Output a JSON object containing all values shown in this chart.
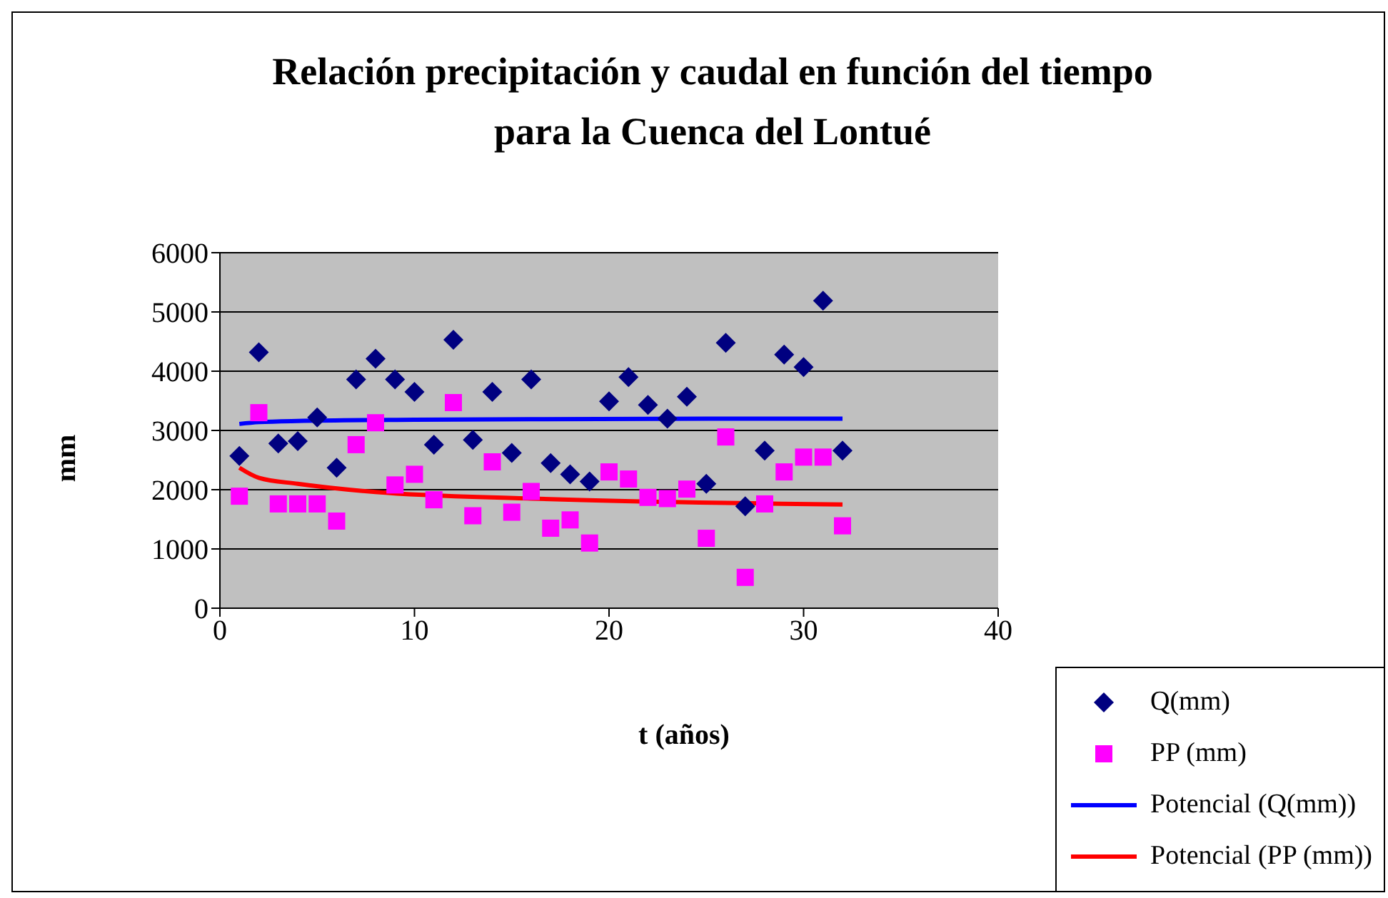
{
  "chart_data": {
    "type": "scatter",
    "title": "Relación precipitación y caudal en función del tiempo\npara la Cuenca del Lontué",
    "xlabel": "t (años)",
    "ylabel": "mm",
    "xlim": [
      0,
      40
    ],
    "xticks": [
      0,
      10,
      20,
      30,
      40
    ],
    "ylim": [
      0,
      6000
    ],
    "yticks": [
      0,
      1000,
      2000,
      3000,
      4000,
      5000,
      6000
    ],
    "grid": "y",
    "legend": "bottom right",
    "x": [
      1,
      2,
      3,
      4,
      5,
      6,
      7,
      8,
      9,
      10,
      11,
      12,
      13,
      14,
      15,
      16,
      17,
      18,
      19,
      20,
      21,
      22,
      23,
      24,
      25,
      26,
      27,
      28,
      29,
      30,
      31,
      32
    ],
    "series": [
      {
        "name": "Q(mm)",
        "marker": "diamond",
        "color": "#000080",
        "values": [
          2570,
          4320,
          2780,
          2820,
          3220,
          2370,
          3860,
          4210,
          3860,
          3650,
          2760,
          4530,
          2840,
          3650,
          2620,
          3860,
          2450,
          2260,
          2140,
          3490,
          3900,
          3430,
          3200,
          3570,
          2100,
          4480,
          1720,
          2660,
          4280,
          4070,
          5190,
          2660
        ]
      },
      {
        "name": "PP (mm)",
        "marker": "square",
        "color": "#ff00ff",
        "values": [
          1890,
          3300,
          1760,
          1760,
          1760,
          1470,
          2760,
          3130,
          2080,
          2260,
          1830,
          3470,
          1560,
          2470,
          1620,
          1970,
          1350,
          1490,
          1100,
          2300,
          2180,
          1870,
          1850,
          2010,
          1180,
          2890,
          520,
          1760,
          2300,
          2550,
          2550,
          1390
        ]
      },
      {
        "name": "Potencial (Q(mm))",
        "type": "line",
        "marker": "none",
        "color": "#0000ff",
        "x": [
          1,
          2,
          4,
          10,
          16,
          32
        ],
        "values": [
          3110,
          3140,
          3160,
          3180,
          3190,
          3200
        ]
      },
      {
        "name": "Potencial (PP (mm))",
        "type": "line",
        "marker": "none",
        "color": "#ff0000",
        "x": [
          1,
          2,
          4,
          8,
          16,
          32
        ],
        "values": [
          2370,
          2200,
          2100,
          1960,
          1850,
          1750
        ]
      }
    ]
  }
}
